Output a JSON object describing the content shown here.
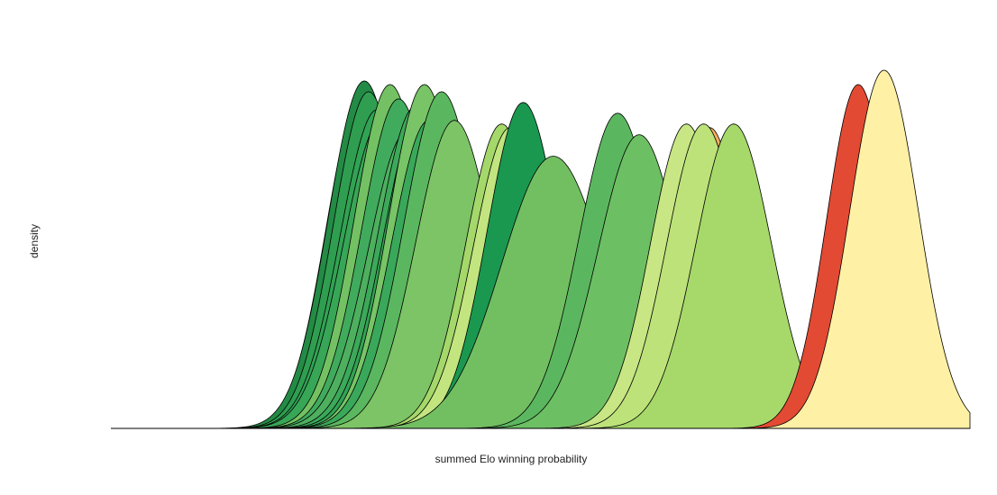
{
  "chart_data": {
    "type": "area",
    "xlabel": "summed Elo winning probability",
    "ylabel": "density",
    "xlim": [
      0,
      1
    ],
    "ylim": [
      0,
      1
    ],
    "grid": false,
    "legend": "none",
    "series": [
      {
        "mean": 0.29,
        "sd": 0.04,
        "peak": 0.91,
        "color": "#31a354"
      },
      {
        "mean": 0.295,
        "sd": 0.042,
        "peak": 0.97,
        "color": "#238b45"
      },
      {
        "mean": 0.3,
        "sd": 0.041,
        "peak": 0.94,
        "color": "#2f9e50"
      },
      {
        "mean": 0.31,
        "sd": 0.043,
        "peak": 0.89,
        "color": "#31a354"
      },
      {
        "mean": 0.315,
        "sd": 0.044,
        "peak": 0.86,
        "color": "#37a656"
      },
      {
        "mean": 0.325,
        "sd": 0.042,
        "peak": 0.96,
        "color": "#74c163"
      },
      {
        "mean": 0.335,
        "sd": 0.043,
        "peak": 0.92,
        "color": "#41ab5d"
      },
      {
        "mean": 0.345,
        "sd": 0.045,
        "peak": 0.83,
        "color": "#4eb05f"
      },
      {
        "mean": 0.355,
        "sd": 0.044,
        "peak": 0.9,
        "color": "#3ca95a"
      },
      {
        "mean": 0.36,
        "sd": 0.043,
        "peak": 0.88,
        "color": "#31a354"
      },
      {
        "mean": 0.365,
        "sd": 0.042,
        "peak": 0.96,
        "color": "#78c466"
      },
      {
        "mean": 0.37,
        "sd": 0.043,
        "peak": 0.86,
        "color": "#3aa85a"
      },
      {
        "mean": 0.385,
        "sd": 0.044,
        "peak": 0.94,
        "color": "#5bb75f"
      },
      {
        "mean": 0.4,
        "sd": 0.045,
        "peak": 0.86,
        "color": "#7cc466"
      },
      {
        "mean": 0.455,
        "sd": 0.042,
        "peak": 0.85,
        "color": "#a5d86a"
      },
      {
        "mean": 0.465,
        "sd": 0.043,
        "peak": 0.84,
        "color": "#c3e57f"
      },
      {
        "mean": 0.48,
        "sd": 0.042,
        "peak": 0.91,
        "color": "#1a9850"
      },
      {
        "mean": 0.515,
        "sd": 0.06,
        "peak": 0.76,
        "color": "#72bf62"
      },
      {
        "mean": 0.59,
        "sd": 0.045,
        "peak": 0.88,
        "color": "#5bb75f"
      },
      {
        "mean": 0.615,
        "sd": 0.048,
        "peak": 0.82,
        "color": "#6dbf63"
      },
      {
        "mean": 0.67,
        "sd": 0.042,
        "peak": 0.85,
        "color": "#c8e684"
      },
      {
        "mean": 0.697,
        "sd": 0.04,
        "peak": 0.84,
        "color": "#fdae61"
      },
      {
        "mean": 0.69,
        "sd": 0.043,
        "peak": 0.85,
        "color": "#bde27a"
      },
      {
        "mean": 0.725,
        "sd": 0.044,
        "peak": 0.85,
        "color": "#a6d96a"
      },
      {
        "mean": 0.87,
        "sd": 0.037,
        "peak": 0.96,
        "color": "#e34a33"
      },
      {
        "mean": 0.9,
        "sd": 0.04,
        "peak": 1.0,
        "color": "#fef0a5"
      }
    ]
  }
}
